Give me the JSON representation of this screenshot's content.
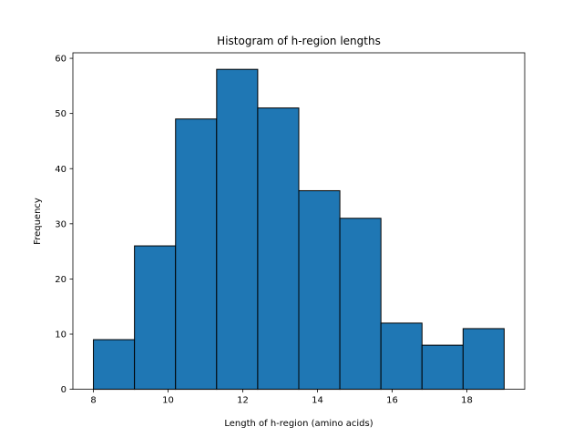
{
  "chart_data": {
    "type": "bar",
    "title": "Histogram of h-region lengths",
    "xlabel": "Length of h-region (amino acids)",
    "ylabel": "Frequency",
    "bins": [
      {
        "start": 8.0,
        "end": 9.1,
        "value": 9
      },
      {
        "start": 9.1,
        "end": 10.2,
        "value": 26
      },
      {
        "start": 10.2,
        "end": 11.3,
        "value": 49
      },
      {
        "start": 11.3,
        "end": 12.4,
        "value": 58
      },
      {
        "start": 12.4,
        "end": 13.5,
        "value": 51
      },
      {
        "start": 13.5,
        "end": 14.6,
        "value": 36
      },
      {
        "start": 14.6,
        "end": 15.7,
        "value": 31
      },
      {
        "start": 15.7,
        "end": 16.8,
        "value": 12
      },
      {
        "start": 16.8,
        "end": 17.9,
        "value": 8
      },
      {
        "start": 17.9,
        "end": 19.0,
        "value": 11
      }
    ],
    "xlim": [
      7.45,
      19.55
    ],
    "ylim": [
      0,
      61
    ],
    "xticks": [
      8,
      10,
      12,
      14,
      16,
      18
    ],
    "yticks": [
      0,
      10,
      20,
      30,
      40,
      50,
      60
    ],
    "grid": false,
    "bar_color": "#1f77b4",
    "edge_color": "#000000"
  }
}
